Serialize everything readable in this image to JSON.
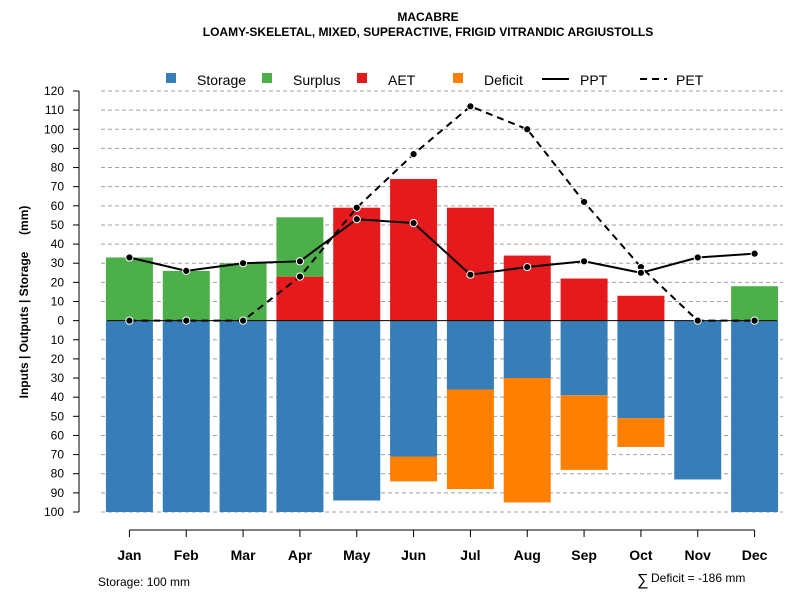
{
  "chart_data": {
    "type": "bar",
    "title": "MACABRE",
    "subtitle": "LOAMY-SKELETAL, MIXED, SUPERACTIVE, FRIGID VITRANDIC ARGIUSTOLLS",
    "ylabel": "Inputs | Outputs | Storage     (mm)",
    "ylim": [
      -100,
      120
    ],
    "yticks": [
      120,
      110,
      100,
      90,
      80,
      70,
      60,
      50,
      40,
      30,
      20,
      10,
      0,
      -10,
      -20,
      -30,
      -40,
      -50,
      -60,
      -70,
      -80,
      -90,
      -100
    ],
    "ytick_labels": [
      "120",
      "110",
      "100",
      "90",
      "80",
      "70",
      "60",
      "50",
      "40",
      "30",
      "20",
      "10",
      "0",
      "10",
      "20",
      "30",
      "40",
      "50",
      "60",
      "70",
      "80",
      "90",
      "100"
    ],
    "grid": true,
    "categories": [
      "Jan",
      "Feb",
      "Mar",
      "Apr",
      "May",
      "Jun",
      "Jul",
      "Aug",
      "Sep",
      "Oct",
      "Nov",
      "Dec"
    ],
    "legend": {
      "position": "top",
      "entries": [
        {
          "label": "Storage",
          "color": "#377eb8",
          "kind": "box"
        },
        {
          "label": "Surplus",
          "color": "#4daf4a",
          "kind": "box"
        },
        {
          "label": "AET",
          "color": "#e41a1c",
          "kind": "box"
        },
        {
          "label": "Deficit",
          "color": "#ff7f00",
          "kind": "box"
        },
        {
          "label": "PPT",
          "color": "#000000",
          "kind": "solid-line"
        },
        {
          "label": "PET",
          "color": "#000000",
          "kind": "dashed-line"
        }
      ]
    },
    "series": [
      {
        "name": "Surplus",
        "color": "#4daf4a",
        "values": [
          33,
          26,
          30,
          31,
          0,
          0,
          0,
          0,
          0,
          0,
          0,
          18
        ]
      },
      {
        "name": "AET",
        "color": "#e41a1c",
        "values": [
          0,
          0,
          0,
          23,
          59,
          74,
          59,
          34,
          22,
          13,
          0,
          0
        ]
      },
      {
        "name": "Storage",
        "color": "#377eb8",
        "values": [
          100,
          100,
          100,
          100,
          94,
          71,
          36,
          30,
          39,
          51,
          83,
          100
        ]
      },
      {
        "name": "Deficit",
        "color": "#ff7f00",
        "values": [
          0,
          0,
          0,
          0,
          0,
          13,
          52,
          65,
          39,
          15,
          0,
          0
        ]
      },
      {
        "name": "PPT",
        "color": "#000000",
        "values": [
          33,
          26,
          30,
          31,
          53,
          51,
          24,
          28,
          31,
          25,
          33,
          35
        ]
      },
      {
        "name": "PET",
        "color": "#000000",
        "values": [
          0,
          0,
          0,
          23,
          59,
          87,
          112,
          100,
          62,
          28,
          0,
          0
        ]
      }
    ],
    "notes": {
      "storage": "Storage: 100 mm",
      "deficit_symbol": "∑",
      "deficit": "Deficit = -186 mm"
    }
  }
}
